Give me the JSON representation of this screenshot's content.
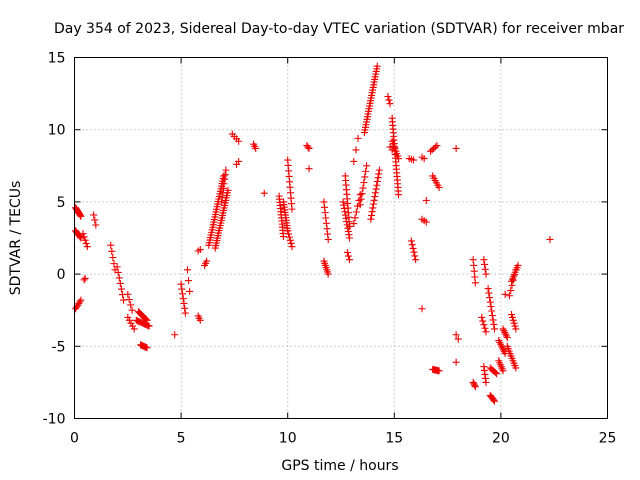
{
  "chart_data": {
    "type": "scatter",
    "title": "Day 354 of 2023, Sidereal Day-to-day VTEC variation (SDTVAR) for receiver mbar",
    "xlabel": "GPS time / hours",
    "ylabel": "SDTVAR / TECUs",
    "xlim": [
      0,
      25
    ],
    "ylim": [
      -10,
      15
    ],
    "xticks": [
      "0",
      "5",
      "10",
      "15",
      "20",
      "25"
    ],
    "yticks": [
      "-10",
      "-5",
      "0",
      "5",
      "10",
      "15"
    ],
    "grid": true,
    "marker": "plus",
    "series_color": "#ee0000",
    "segments": [
      {
        "x0": 0.05,
        "y0": 4.6,
        "x1": 0.3,
        "y1": 4.0,
        "n": 10
      },
      {
        "x0": 0.05,
        "y0": 3.0,
        "x1": 0.3,
        "y1": 2.5,
        "n": 8
      },
      {
        "x0": 0.05,
        "y0": -2.4,
        "x1": 0.3,
        "y1": -1.8,
        "n": 6
      },
      {
        "x0": 0.4,
        "y0": 2.8,
        "x1": 0.6,
        "y1": 1.9,
        "n": 5
      },
      {
        "x0": 0.45,
        "y0": -0.4,
        "x1": 0.5,
        "y1": -0.3,
        "n": 2
      },
      {
        "x0": 0.9,
        "y0": 4.1,
        "x1": 1.0,
        "y1": 3.4,
        "n": 3
      },
      {
        "x0": 1.7,
        "y0": 2.0,
        "x1": 1.9,
        "y1": 0.3,
        "n": 5
      },
      {
        "x0": 2.0,
        "y0": 0.5,
        "x1": 2.3,
        "y1": -1.8,
        "n": 7
      },
      {
        "x0": 2.5,
        "y0": -1.4,
        "x1": 2.7,
        "y1": -2.5,
        "n": 4
      },
      {
        "x0": 2.5,
        "y0": -3.0,
        "x1": 2.8,
        "y1": -3.8,
        "n": 5
      },
      {
        "x0": 2.9,
        "y0": -3.2,
        "x1": 3.5,
        "y1": -3.6,
        "n": 12
      },
      {
        "x0": 3.0,
        "y0": -2.6,
        "x1": 3.4,
        "y1": -3.2,
        "n": 10
      },
      {
        "x0": 3.1,
        "y0": -4.9,
        "x1": 3.4,
        "y1": -5.1,
        "n": 8
      },
      {
        "x0": 4.7,
        "y0": -4.2,
        "x1": 4.75,
        "y1": -4.2,
        "n": 1
      },
      {
        "x0": 5.0,
        "y0": -0.7,
        "x1": 5.2,
        "y1": -2.7,
        "n": 7
      },
      {
        "x0": 5.3,
        "y0": 0.3,
        "x1": 5.4,
        "y1": -1.2,
        "n": 3
      },
      {
        "x0": 5.8,
        "y0": -2.9,
        "x1": 5.9,
        "y1": -3.2,
        "n": 3
      },
      {
        "x0": 5.8,
        "y0": 1.6,
        "x1": 5.9,
        "y1": 1.7,
        "n": 2
      },
      {
        "x0": 6.1,
        "y0": 0.6,
        "x1": 6.2,
        "y1": 0.9,
        "n": 3
      },
      {
        "x0": 6.3,
        "y0": 2.0,
        "x1": 7.0,
        "y1": 6.8,
        "n": 28
      },
      {
        "x0": 6.6,
        "y0": 1.8,
        "x1": 7.2,
        "y1": 5.8,
        "n": 24
      },
      {
        "x0": 6.9,
        "y0": 5.0,
        "x1": 7.1,
        "y1": 7.2,
        "n": 8
      },
      {
        "x0": 7.4,
        "y0": 9.7,
        "x1": 7.7,
        "y1": 9.2,
        "n": 4
      },
      {
        "x0": 7.6,
        "y0": 7.6,
        "x1": 7.7,
        "y1": 7.8,
        "n": 2
      },
      {
        "x0": 8.4,
        "y0": 9.0,
        "x1": 8.5,
        "y1": 8.7,
        "n": 3
      },
      {
        "x0": 8.9,
        "y0": 5.6,
        "x1": 9.0,
        "y1": 5.6,
        "n": 1
      },
      {
        "x0": 9.6,
        "y0": 5.4,
        "x1": 9.8,
        "y1": 2.6,
        "n": 14
      },
      {
        "x0": 9.8,
        "y0": 5.0,
        "x1": 10.0,
        "y1": 3.0,
        "n": 12
      },
      {
        "x0": 10.0,
        "y0": 7.9,
        "x1": 10.2,
        "y1": 4.5,
        "n": 10
      },
      {
        "x0": 10.0,
        "y0": 3.0,
        "x1": 10.2,
        "y1": 1.9,
        "n": 6
      },
      {
        "x0": 10.9,
        "y0": 8.9,
        "x1": 11.0,
        "y1": 8.7,
        "n": 3
      },
      {
        "x0": 11.0,
        "y0": 7.3,
        "x1": 11.0,
        "y1": 7.2,
        "n": 1
      },
      {
        "x0": 11.7,
        "y0": 5.0,
        "x1": 11.9,
        "y1": 2.4,
        "n": 8
      },
      {
        "x0": 11.7,
        "y0": 0.9,
        "x1": 11.9,
        "y1": 0.0,
        "n": 7
      },
      {
        "x0": 12.6,
        "y0": 5.0,
        "x1": 12.9,
        "y1": 2.5,
        "n": 12
      },
      {
        "x0": 12.7,
        "y0": 6.8,
        "x1": 12.9,
        "y1": 3.3,
        "n": 12
      },
      {
        "x0": 12.8,
        "y0": 1.5,
        "x1": 12.9,
        "y1": 1.0,
        "n": 3
      },
      {
        "x0": 13.1,
        "y0": 7.8,
        "x1": 13.3,
        "y1": 9.4,
        "n": 3
      },
      {
        "x0": 13.1,
        "y0": 3.5,
        "x1": 13.4,
        "y1": 5.5,
        "n": 6
      },
      {
        "x0": 13.4,
        "y0": 4.8,
        "x1": 13.7,
        "y1": 7.5,
        "n": 8
      },
      {
        "x0": 13.6,
        "y0": 9.8,
        "x1": 14.2,
        "y1": 14.4,
        "n": 26
      },
      {
        "x0": 13.9,
        "y0": 3.8,
        "x1": 14.3,
        "y1": 7.2,
        "n": 14
      },
      {
        "x0": 14.7,
        "y0": 12.3,
        "x1": 14.8,
        "y1": 11.8,
        "n": 3
      },
      {
        "x0": 14.8,
        "y0": 8.8,
        "x1": 14.9,
        "y1": 8.6,
        "n": 2
      },
      {
        "x0": 14.9,
        "y0": 10.8,
        "x1": 15.2,
        "y1": 5.5,
        "n": 22
      },
      {
        "x0": 14.9,
        "y0": 9.2,
        "x1": 15.2,
        "y1": 8.0,
        "n": 8
      },
      {
        "x0": 15.7,
        "y0": 8.0,
        "x1": 15.9,
        "y1": 7.9,
        "n": 3
      },
      {
        "x0": 15.8,
        "y0": 2.3,
        "x1": 16.0,
        "y1": 1.0,
        "n": 6
      },
      {
        "x0": 16.3,
        "y0": 8.1,
        "x1": 16.4,
        "y1": 8.0,
        "n": 2
      },
      {
        "x0": 16.3,
        "y0": 3.8,
        "x1": 16.5,
        "y1": 3.6,
        "n": 3
      },
      {
        "x0": 16.3,
        "y0": -2.4,
        "x1": 16.35,
        "y1": -2.4,
        "n": 1
      },
      {
        "x0": 16.5,
        "y0": 5.1,
        "x1": 16.55,
        "y1": 5.1,
        "n": 1
      },
      {
        "x0": 16.7,
        "y0": 8.5,
        "x1": 17.0,
        "y1": 8.9,
        "n": 5
      },
      {
        "x0": 16.8,
        "y0": 6.8,
        "x1": 17.1,
        "y1": 6.0,
        "n": 6
      },
      {
        "x0": 16.8,
        "y0": -6.6,
        "x1": 17.1,
        "y1": -6.7,
        "n": 8
      },
      {
        "x0": 17.9,
        "y0": 8.7,
        "x1": 17.95,
        "y1": 8.7,
        "n": 1
      },
      {
        "x0": 17.9,
        "y0": -4.2,
        "x1": 18.0,
        "y1": -4.5,
        "n": 2
      },
      {
        "x0": 17.9,
        "y0": -6.1,
        "x1": 17.95,
        "y1": -6.1,
        "n": 1
      },
      {
        "x0": 18.7,
        "y0": 1.0,
        "x1": 18.8,
        "y1": -0.6,
        "n": 5
      },
      {
        "x0": 18.7,
        "y0": -7.5,
        "x1": 18.8,
        "y1": -7.8,
        "n": 4
      },
      {
        "x0": 19.2,
        "y0": 1.0,
        "x1": 19.3,
        "y1": 0.0,
        "n": 4
      },
      {
        "x0": 19.1,
        "y0": -3.0,
        "x1": 19.3,
        "y1": -4.0,
        "n": 5
      },
      {
        "x0": 19.2,
        "y0": -6.4,
        "x1": 19.3,
        "y1": -7.5,
        "n": 5
      },
      {
        "x0": 19.4,
        "y0": -1.0,
        "x1": 19.7,
        "y1": -3.8,
        "n": 10
      },
      {
        "x0": 19.5,
        "y0": -8.4,
        "x1": 19.7,
        "y1": -8.8,
        "n": 6
      },
      {
        "x0": 19.5,
        "y0": -6.5,
        "x1": 19.8,
        "y1": -6.9,
        "n": 6
      },
      {
        "x0": 19.9,
        "y0": -4.6,
        "x1": 20.2,
        "y1": -5.5,
        "n": 8
      },
      {
        "x0": 19.9,
        "y0": -6.0,
        "x1": 20.1,
        "y1": -6.7,
        "n": 6
      },
      {
        "x0": 20.1,
        "y0": -3.8,
        "x1": 20.3,
        "y1": -4.4,
        "n": 6
      },
      {
        "x0": 20.2,
        "y0": -1.4,
        "x1": 20.25,
        "y1": -1.4,
        "n": 1
      },
      {
        "x0": 20.3,
        "y0": -5.0,
        "x1": 20.7,
        "y1": -6.5,
        "n": 10
      },
      {
        "x0": 20.5,
        "y0": -2.8,
        "x1": 20.7,
        "y1": -3.8,
        "n": 6
      },
      {
        "x0": 20.5,
        "y0": -0.5,
        "x1": 20.8,
        "y1": 0.6,
        "n": 8
      },
      {
        "x0": 20.4,
        "y0": -1.5,
        "x1": 20.7,
        "y1": 0.3,
        "n": 6
      },
      {
        "x0": 22.3,
        "y0": 2.4,
        "x1": 22.35,
        "y1": 2.4,
        "n": 1
      }
    ]
  }
}
